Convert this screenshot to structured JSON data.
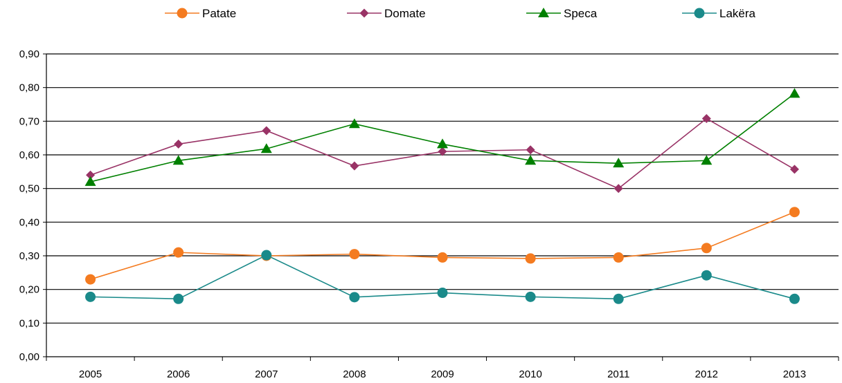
{
  "chart_data": {
    "type": "line",
    "title": "",
    "xlabel": "",
    "ylabel": "",
    "categories": [
      "2005",
      "2006",
      "2007",
      "2008",
      "2009",
      "2010",
      "2011",
      "2012",
      "2013"
    ],
    "ylim": [
      0,
      0.9
    ],
    "y_ticks": [
      "0,00",
      "0,10",
      "0,20",
      "0,30",
      "0,40",
      "0,50",
      "0,60",
      "0,70",
      "0,80",
      "0,90"
    ],
    "grid": "horizontal",
    "legend_position": "top",
    "series": [
      {
        "name": "Patate",
        "color": "#f47b20",
        "marker": "circle",
        "values": [
          0.23,
          0.31,
          0.3,
          0.305,
          0.295,
          0.292,
          0.295,
          0.323,
          0.43
        ]
      },
      {
        "name": "Domate",
        "color": "#993366",
        "marker": "diamond",
        "values": [
          0.54,
          0.632,
          0.672,
          0.567,
          0.61,
          0.615,
          0.5,
          0.708,
          0.557
        ]
      },
      {
        "name": "Speca",
        "color": "#008000",
        "marker": "triangle",
        "values": [
          0.52,
          0.583,
          0.618,
          0.692,
          0.632,
          0.583,
          0.575,
          0.583,
          0.782
        ]
      },
      {
        "name": "Lakëra",
        "color": "#1a8a8a",
        "marker": "circle",
        "values": [
          0.178,
          0.172,
          0.302,
          0.177,
          0.19,
          0.178,
          0.172,
          0.242,
          0.172
        ]
      }
    ]
  }
}
